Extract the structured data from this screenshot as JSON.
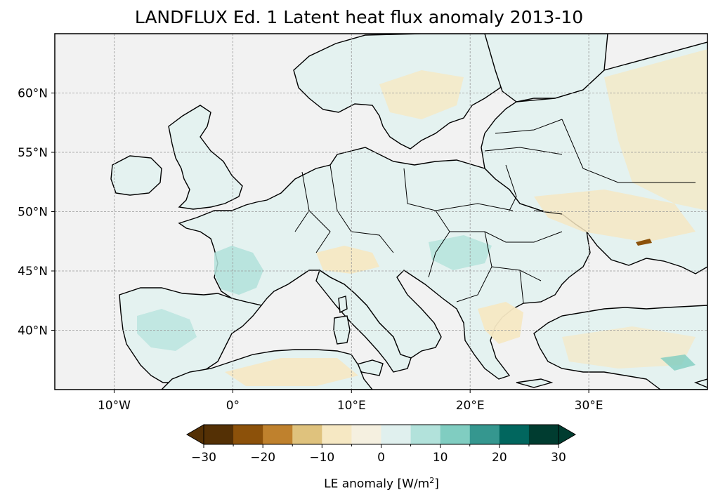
{
  "title": "LANDFLUX Ed. 1 Latent heat flux anomaly 2013-10",
  "map": {
    "lon_range": [
      -15,
      40
    ],
    "lat_range": [
      35,
      65
    ],
    "lat_ticks": [
      {
        "value": 60,
        "label": "60°N"
      },
      {
        "value": 55,
        "label": "55°N"
      },
      {
        "value": 50,
        "label": "50°N"
      },
      {
        "value": 45,
        "label": "45°N"
      },
      {
        "value": 40,
        "label": "40°N"
      }
    ],
    "lon_ticks": [
      {
        "value": -10,
        "label": "10°W"
      },
      {
        "value": 0,
        "label": "0°"
      },
      {
        "value": 10,
        "label": "10°E"
      },
      {
        "value": 20,
        "label": "20°E"
      },
      {
        "value": 30,
        "label": "30°E"
      }
    ],
    "ocean_color": "#f2f2f2",
    "land_base_color": "#e4f2f0",
    "coastline_color": "#000000",
    "grid": "dashed"
  },
  "colorbar": {
    "label_text": "LE anomaly [W/m",
    "label_sup": "2",
    "label_end": "]",
    "extend": "both",
    "levels": [
      -30,
      -25,
      -20,
      -15,
      -10,
      -5,
      0,
      5,
      10,
      15,
      20,
      25,
      30
    ],
    "colors": [
      "#543005",
      "#8c510a",
      "#bf812d",
      "#dfc27d",
      "#f6e8c3",
      "#f5f0e0",
      "#e0f0ee",
      "#b2e2db",
      "#80cdc1",
      "#35978f",
      "#01665e",
      "#003c30"
    ],
    "tick_labels": [
      {
        "value": -30,
        "label": "−30"
      },
      {
        "value": -20,
        "label": "−20"
      },
      {
        "value": -10,
        "label": "−10"
      },
      {
        "value": 0,
        "label": "0"
      },
      {
        "value": 10,
        "label": "10"
      },
      {
        "value": 20,
        "label": "20"
      },
      {
        "value": 30,
        "label": "30"
      }
    ]
  }
}
